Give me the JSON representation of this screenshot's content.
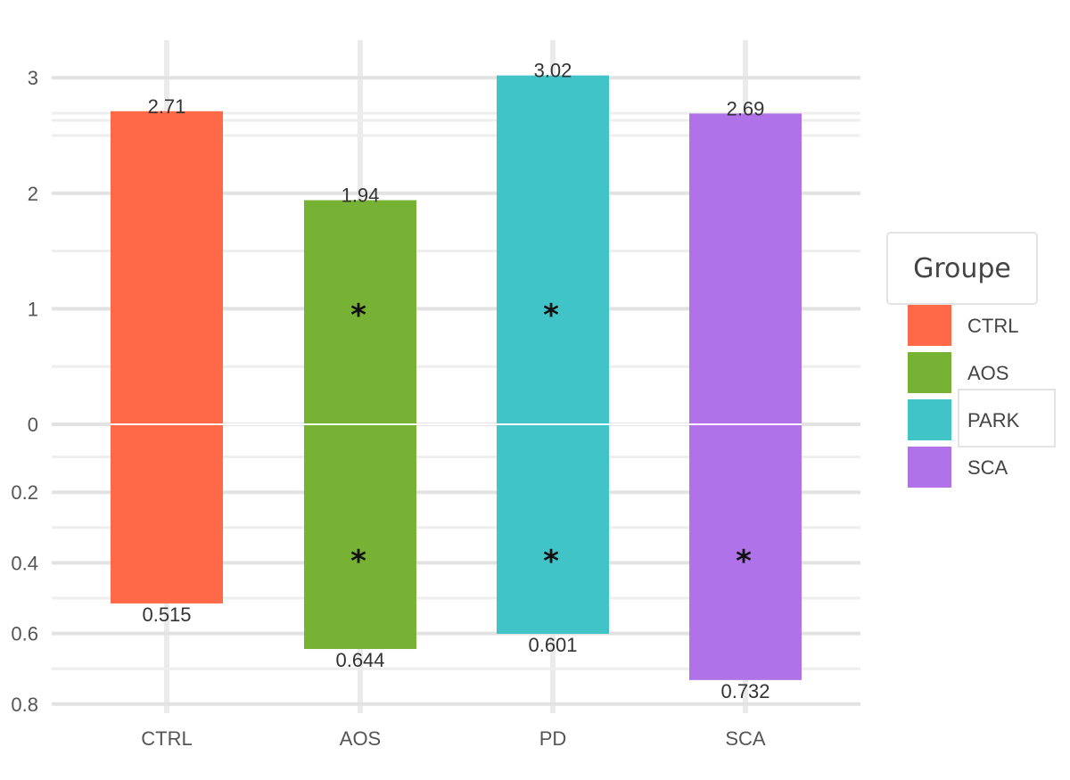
{
  "chart_data": {
    "type": "bar",
    "categories": [
      "CTRL",
      "AOS",
      "PD",
      "SCA"
    ],
    "upper_values": [
      2.71,
      1.94,
      3.02,
      2.69
    ],
    "lower_values": [
      0.515,
      0.644,
      0.601,
      0.732
    ],
    "upper_ticks": [
      "3",
      "2",
      "1",
      "0"
    ],
    "lower_ticks": [
      "0.2",
      "0.4",
      "0.6",
      "0.8"
    ],
    "upper_ylim": [
      0,
      3
    ],
    "lower_ylim": [
      0,
      0.8
    ],
    "grid": true,
    "significance_upper": [
      false,
      true,
      true,
      false
    ],
    "significance_lower": [
      false,
      true,
      true,
      true
    ],
    "significance_marker": "*",
    "colors": [
      "#ff6947",
      "#77b235",
      "#41c4c7",
      "#b072e8"
    ],
    "legend": {
      "title": "Groupe",
      "entries": [
        "CTRL",
        "AOS",
        "PARK",
        "SCA"
      ],
      "placement": "right"
    }
  }
}
